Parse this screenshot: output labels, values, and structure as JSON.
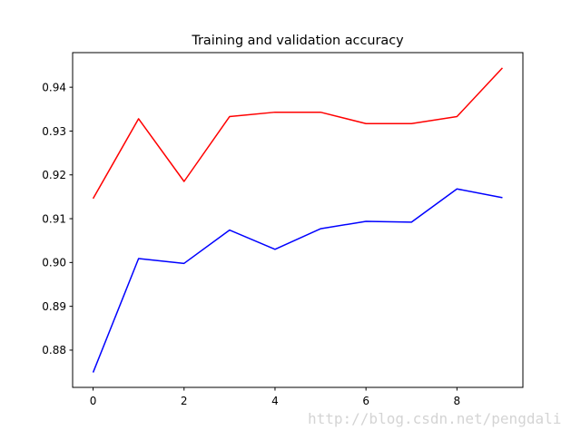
{
  "chart_data": {
    "type": "line",
    "title": "Training and validation accuracy",
    "xlabel": "",
    "ylabel": "",
    "x": [
      0,
      1,
      2,
      3,
      4,
      5,
      6,
      7,
      8,
      9
    ],
    "series": [
      {
        "color": "#0000ff",
        "values": [
          0.8749,
          0.9009,
          0.8998,
          0.9074,
          0.903,
          0.9077,
          0.9094,
          0.9092,
          0.9168,
          0.9148
        ]
      },
      {
        "color": "#ff0000",
        "values": [
          0.9146,
          0.9328,
          0.9185,
          0.9333,
          0.9343,
          0.9343,
          0.9317,
          0.9317,
          0.9333,
          0.9444
        ]
      }
    ],
    "xlim": [
      -0.45,
      9.45
    ],
    "ylim": [
      0.8715,
      0.9479
    ],
    "xticks": [
      0,
      2,
      4,
      6,
      8
    ],
    "yticks": [
      0.88,
      0.89,
      0.9,
      0.91,
      0.92,
      0.93,
      0.94
    ],
    "ytick_labels": [
      "0.88",
      "0.89",
      "0.90",
      "0.91",
      "0.92",
      "0.93",
      "0.94"
    ],
    "grid": false,
    "legend": "none"
  },
  "watermark": "http://blog.csdn.net/pengdali"
}
